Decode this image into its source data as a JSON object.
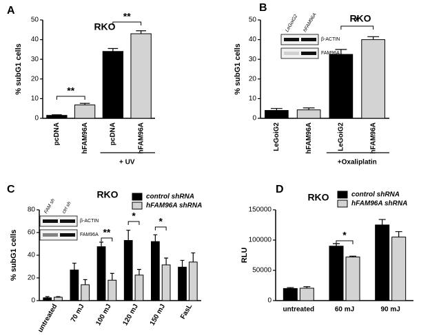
{
  "chart_data": [
    {
      "type": "bar",
      "panel": "A",
      "title": "RKO",
      "ylabel": "% subG1 cells",
      "categories": [
        "pcDNA",
        "hFAM96A",
        "pcDNA",
        "hFAM96A"
      ],
      "values": [
        1.5,
        6.8,
        34,
        43
      ],
      "errors": [
        0.3,
        0.8,
        1.5,
        1.5
      ],
      "colors": [
        "#000000",
        "#d3d3d3",
        "#000000",
        "#d3d3d3"
      ],
      "group_label": "+ UV",
      "annotations": [
        "**",
        "**"
      ],
      "ylim": [
        0,
        50
      ],
      "yticks": [
        0,
        10,
        20,
        30,
        40,
        50
      ]
    },
    {
      "type": "bar",
      "panel": "B",
      "title": "RKO",
      "ylabel": "% subG1 cells",
      "categories": [
        "LeGoiG2",
        "hFAM96A",
        "LeGoiG2",
        "hFAM96A"
      ],
      "values": [
        4,
        4.3,
        32.5,
        40
      ],
      "errors": [
        1,
        1,
        2.5,
        1.5
      ],
      "colors": [
        "#000000",
        "#d3d3d3",
        "#000000",
        "#d3d3d3"
      ],
      "group_label": "+Oxaliplatin",
      "annotations": [
        "*"
      ],
      "inset": {
        "lanes": [
          "LeGoiG2",
          "hFAM96A"
        ],
        "bands": [
          "β-ACTIN",
          "FAM96A"
        ]
      },
      "ylim": [
        0,
        50
      ],
      "yticks": [
        0,
        10,
        20,
        30,
        40,
        50
      ]
    },
    {
      "type": "bar",
      "panel": "C",
      "title": "RKO",
      "ylabel": "% subG1 cells",
      "categories": [
        "untreated",
        "70 mJ",
        "100 mJ",
        "120 mJ",
        "150 mJ",
        "FasL"
      ],
      "series": [
        {
          "name": "control shRNA",
          "color": "#000000",
          "values": [
            2.5,
            27,
            47.5,
            53,
            52,
            29.5
          ],
          "errors": [
            1,
            6,
            4,
            9,
            6,
            6
          ]
        },
        {
          "name": "hFAM96A shRNA",
          "color": "#d3d3d3",
          "values": [
            3,
            14,
            18,
            22.5,
            31.5,
            34
          ],
          "errors": [
            0.5,
            4.5,
            6,
            5,
            6,
            8
          ]
        }
      ],
      "annotations": [
        "**",
        "*",
        "*"
      ],
      "inset": {
        "lanes": [
          "FAM sh",
          "ctrl sh"
        ],
        "bands": [
          "β-ACTIN",
          "FAM96A"
        ]
      },
      "ylim": [
        0,
        80
      ],
      "yticks": [
        0,
        20,
        40,
        60,
        80
      ]
    },
    {
      "type": "bar",
      "panel": "D",
      "title": "RKO",
      "ylabel": "RLU",
      "categories": [
        "untreated",
        "60 mJ",
        "90 mJ"
      ],
      "series": [
        {
          "name": "control shRNA",
          "color": "#000000",
          "values": [
            20000,
            90000,
            125000
          ],
          "errors": [
            1500,
            4000,
            9000
          ]
        },
        {
          "name": "hFAM96A shRNA",
          "color": "#d3d3d3",
          "values": [
            20500,
            72000,
            105000
          ],
          "errors": [
            2500,
            1500,
            9000
          ]
        }
      ],
      "annotations": [
        "*"
      ],
      "ylim": [
        0,
        150000
      ],
      "yticks": [
        0,
        50000,
        100000,
        150000
      ]
    }
  ]
}
